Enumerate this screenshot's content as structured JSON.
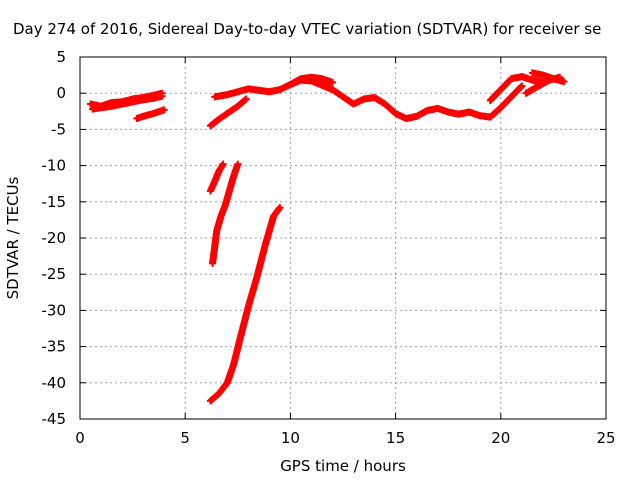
{
  "chart_data": {
    "type": "scatter",
    "title": "Day 274 of 2016, Sidereal Day-to-day VTEC variation (SDTVAR) for receiver se",
    "xlabel": "GPS time / hours",
    "ylabel": "SDTVAR / TECUs",
    "xlim": [
      0,
      25
    ],
    "ylim": [
      -45,
      5
    ],
    "x_ticks": [
      0,
      5,
      10,
      15,
      20,
      25
    ],
    "y_ticks": [
      5,
      0,
      -5,
      -10,
      -15,
      -20,
      -25,
      -30,
      -35,
      -40,
      -45
    ],
    "grid": true,
    "marker": "+",
    "color": "#ff0000",
    "series": [
      {
        "x": [
          0.5,
          1.0,
          1.5,
          2.0,
          2.5,
          3.0,
          3.5,
          3.9
        ],
        "y": [
          -1.5,
          -1.8,
          -1.3,
          -1.2,
          -0.8,
          -0.6,
          -0.3,
          0.0
        ]
      },
      {
        "x": [
          0.6,
          1.0,
          1.5,
          2.0,
          2.5,
          3.0,
          3.5,
          3.9
        ],
        "y": [
          -2.2,
          -2.0,
          -1.8,
          -1.5,
          -1.2,
          -0.9,
          -0.7,
          -0.4
        ]
      },
      {
        "x": [
          2.7,
          3.0,
          3.5,
          4.0
        ],
        "y": [
          -3.5,
          -3.2,
          -2.8,
          -2.3
        ]
      },
      {
        "x": [
          6.2,
          6.6,
          7.0,
          7.5,
          7.9
        ],
        "y": [
          -4.5,
          -3.6,
          -2.8,
          -1.8,
          -0.8
        ]
      },
      {
        "x": [
          6.4,
          7.0,
          7.5,
          8.0,
          8.5,
          9.0,
          9.5,
          10.0,
          10.5,
          11.0,
          11.5,
          12.0,
          12.5,
          13.0,
          13.5,
          14.0,
          14.5,
          15.0,
          15.5,
          16.0,
          16.5,
          17.0,
          17.5,
          18.0,
          18.5,
          19.0,
          19.5,
          20.0,
          20.5,
          21.0
        ],
        "y": [
          -0.5,
          -0.2,
          0.2,
          0.6,
          0.4,
          0.2,
          0.5,
          1.2,
          1.8,
          1.7,
          1.1,
          0.5,
          -0.5,
          -1.5,
          -0.8,
          -0.6,
          -1.5,
          -2.8,
          -3.5,
          -3.2,
          -2.4,
          -2.1,
          -2.6,
          -2.9,
          -2.6,
          -3.1,
          -3.3,
          -2.0,
          -0.5,
          1.0
        ]
      },
      {
        "x": [
          10.0,
          10.5,
          11.0,
          11.5,
          12.0
        ],
        "y": [
          1.2,
          2.0,
          2.2,
          2.0,
          1.5
        ]
      },
      {
        "x": [
          19.5,
          20.0,
          20.5,
          21.0,
          21.5,
          22.0
        ],
        "y": [
          -1.0,
          0.5,
          2.0,
          2.3,
          1.8,
          1.5
        ]
      },
      {
        "x": [
          21.2,
          21.8,
          22.3,
          22.8
        ],
        "y": [
          0.0,
          1.0,
          1.8,
          2.2
        ]
      },
      {
        "x": [
          21.5,
          22.0,
          22.5,
          23.0
        ],
        "y": [
          2.8,
          2.5,
          2.0,
          1.6
        ]
      },
      {
        "x": [
          6.2,
          6.4,
          6.6,
          6.8
        ],
        "y": [
          -13.5,
          -12.2,
          -10.8,
          -9.8
        ]
      },
      {
        "x": [
          6.3,
          6.5,
          6.7,
          6.9,
          7.1,
          7.3,
          7.5
        ],
        "y": [
          -23.5,
          -19.0,
          -17.0,
          -15.5,
          -13.5,
          -11.5,
          -9.8
        ]
      },
      {
        "x": [
          6.2,
          6.6,
          7.0,
          7.3,
          7.6,
          8.0,
          8.4,
          8.8,
          9.2,
          9.5
        ],
        "y": [
          -42.5,
          -41.5,
          -40.0,
          -37.5,
          -34.0,
          -29.5,
          -25.5,
          -21.0,
          -17.0,
          -15.8
        ]
      }
    ]
  }
}
